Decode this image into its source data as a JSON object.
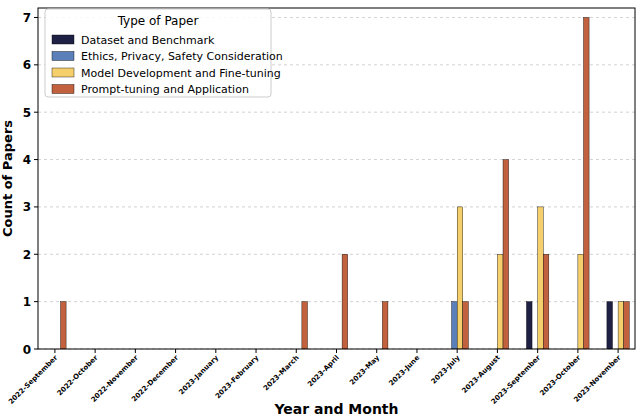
{
  "chart_data": {
    "type": "bar",
    "x_label": "Year and Month",
    "y_label": "Count of Papers",
    "legend_title": "Type of Paper",
    "legend": "upper-left",
    "grid": true,
    "categories": [
      "2022-September",
      "2022-October",
      "2022-November",
      "2022-December",
      "2023-January",
      "2023-February",
      "2023-March",
      "2023-April",
      "2023-May",
      "2023-June",
      "2023-July",
      "2023-August",
      "2023-September",
      "2023-October",
      "2023-November"
    ],
    "ylim": [
      0,
      7.2
    ],
    "yticks": [
      0,
      1,
      2,
      3,
      4,
      5,
      6,
      7
    ],
    "series": [
      {
        "name": "Dataset and Benchmark",
        "color": "#1e2143",
        "values": [
          0,
          0,
          0,
          0,
          0,
          0,
          0,
          0,
          0,
          0,
          0,
          0,
          1,
          0,
          1
        ]
      },
      {
        "name": "Ethics, Privacy, Safety Consideration",
        "color": "#5b7fb8",
        "values": [
          0,
          0,
          0,
          0,
          0,
          0,
          0,
          0,
          0,
          0,
          1,
          0,
          0,
          0,
          0
        ]
      },
      {
        "name": "Model Development and Fine-tuning",
        "color": "#f4cf6b",
        "values": [
          0,
          0,
          0,
          0,
          0,
          0,
          0,
          0,
          0,
          0,
          3,
          2,
          3,
          2,
          1
        ]
      },
      {
        "name": "Prompt-tuning and Application",
        "color": "#c2613e",
        "values": [
          1,
          0,
          0,
          0,
          0,
          0,
          1,
          2,
          1,
          0,
          1,
          4,
          2,
          7,
          1
        ]
      }
    ]
  }
}
